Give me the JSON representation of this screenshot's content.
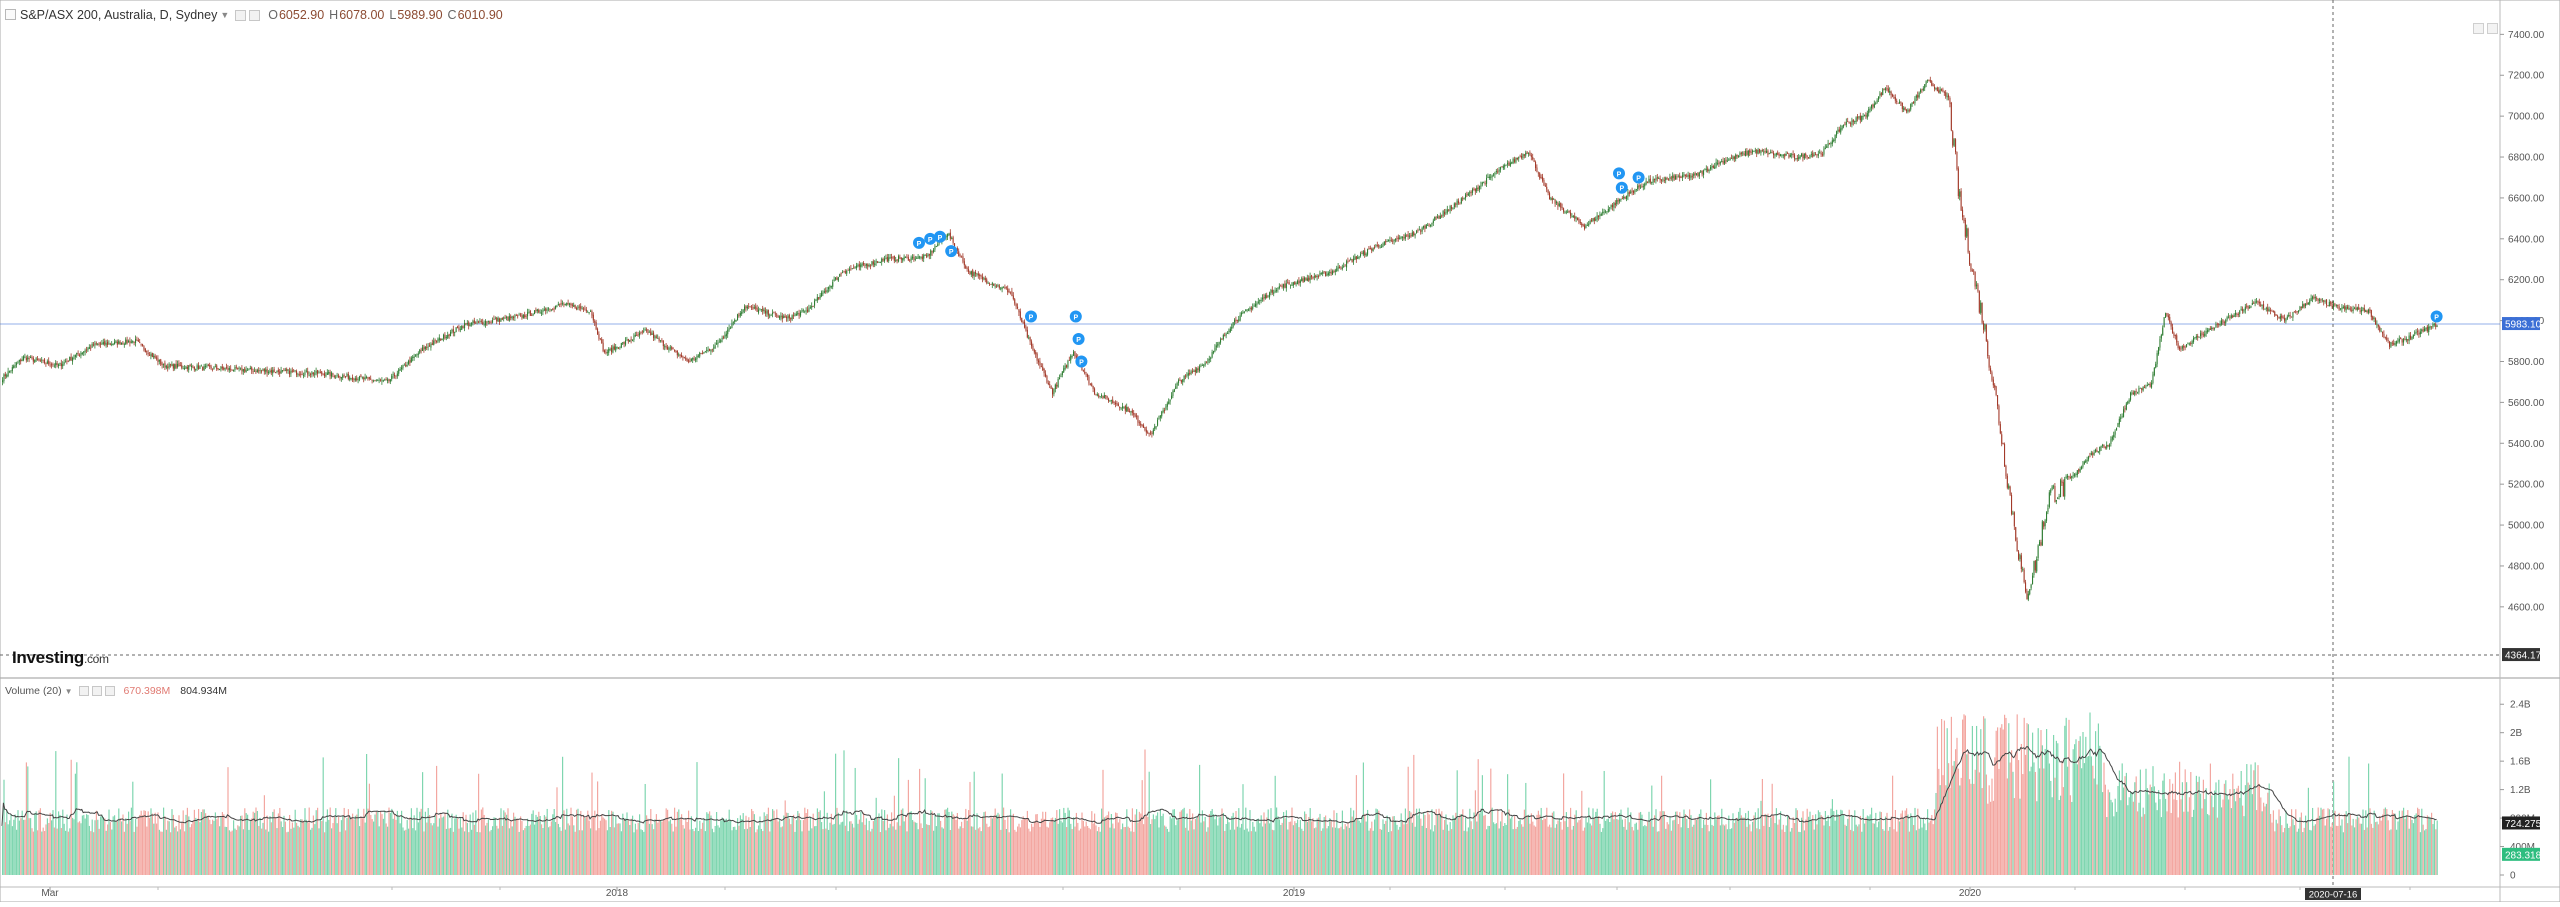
{
  "header": {
    "symbol": "S&P/ASX 200, Australia, D, Sydney",
    "open_label": "O",
    "open": "6052.90",
    "high_label": "H",
    "high": "6078.00",
    "low_label": "L",
    "low": "5989.90",
    "close_label": "C",
    "close": "6010.90"
  },
  "volume_header": {
    "label": "Volume (20)",
    "volume": "670.398M",
    "ma": "804.934M"
  },
  "logo": {
    "main": "Investing",
    "suffix": ".com"
  },
  "badges": {
    "last_price": "5983.10",
    "cursor_price": "4364.17",
    "vol_ma": "724.275M",
    "vol_last": "283.318M",
    "cursor_date": "2020-07-16"
  },
  "colors": {
    "up": "#2e7d32",
    "down": "#a33a2a",
    "vol_up": "#7fd6b0",
    "vol_down": "#f3a7a1",
    "price_line": "#3b6fd6",
    "badge_blue": "#3b6fd6",
    "marker": "#2196f3"
  },
  "chart_data": [
    {
      "type": "candlestick",
      "title": "S&P/ASX 200, Australia, D, Sydney",
      "ylim": [
        4340,
        7480
      ],
      "y_ticks": [
        7400,
        7200,
        7000,
        6800,
        6600,
        6400,
        6200,
        6000,
        5800,
        5600,
        5400,
        5200,
        5000,
        4800,
        4600
      ],
      "x_ticks": [
        "Mar",
        "2018",
        "2019",
        "2020"
      ],
      "last_price": 5983.1,
      "cursor_price": 4364.17,
      "anchors": [
        [
          0,
          5720
        ],
        [
          15,
          5820
        ],
        [
          40,
          5780
        ],
        [
          65,
          5880
        ],
        [
          95,
          5900
        ],
        [
          115,
          5780
        ],
        [
          170,
          5760
        ],
        [
          230,
          5740
        ],
        [
          275,
          5700
        ],
        [
          300,
          5860
        ],
        [
          330,
          5980
        ],
        [
          370,
          6020
        ],
        [
          400,
          6080
        ],
        [
          420,
          6050
        ],
        [
          430,
          5840
        ],
        [
          460,
          5950
        ],
        [
          475,
          5870
        ],
        [
          490,
          5800
        ],
        [
          510,
          5880
        ],
        [
          530,
          6070
        ],
        [
          560,
          6010
        ],
        [
          575,
          6050
        ],
        [
          600,
          6240
        ],
        [
          630,
          6300
        ],
        [
          660,
          6310
        ],
        [
          675,
          6430
        ],
        [
          690,
          6240
        ],
        [
          720,
          6140
        ],
        [
          735,
          5870
        ],
        [
          750,
          5650
        ],
        [
          765,
          5850
        ],
        [
          780,
          5650
        ],
        [
          805,
          5560
        ],
        [
          820,
          5440
        ],
        [
          840,
          5700
        ],
        [
          860,
          5800
        ],
        [
          880,
          6000
        ],
        [
          910,
          6160
        ],
        [
          950,
          6240
        ],
        [
          980,
          6360
        ],
        [
          1010,
          6430
        ],
        [
          1040,
          6580
        ],
        [
          1070,
          6740
        ],
        [
          1090,
          6830
        ],
        [
          1105,
          6600
        ],
        [
          1130,
          6460
        ],
        [
          1155,
          6590
        ],
        [
          1175,
          6680
        ],
        [
          1195,
          6700
        ],
        [
          1210,
          6710
        ],
        [
          1225,
          6770
        ],
        [
          1250,
          6830
        ],
        [
          1280,
          6800
        ],
        [
          1300,
          6820
        ],
        [
          1315,
          6960
        ],
        [
          1330,
          7000
        ],
        [
          1345,
          7140
        ],
        [
          1360,
          7020
        ],
        [
          1375,
          7170
        ],
        [
          1390,
          7090
        ],
        [
          1398,
          6580
        ],
        [
          1408,
          6220
        ],
        [
          1415,
          5990
        ],
        [
          1425,
          5570
        ],
        [
          1435,
          5090
        ],
        [
          1445,
          4650
        ],
        [
          1452,
          4810
        ],
        [
          1462,
          5150
        ],
        [
          1475,
          5190
        ],
        [
          1490,
          5340
        ],
        [
          1505,
          5400
        ],
        [
          1520,
          5640
        ],
        [
          1535,
          5690
        ],
        [
          1545,
          6040
        ],
        [
          1555,
          5860
        ],
        [
          1570,
          5930
        ],
        [
          1590,
          6010
        ],
        [
          1610,
          6090
        ],
        [
          1630,
          6000
        ],
        [
          1650,
          6110
        ],
        [
          1670,
          6060
        ],
        [
          1690,
          6050
        ],
        [
          1705,
          5880
        ],
        [
          1720,
          5920
        ],
        [
          1739,
          5983
        ]
      ],
      "volume": {
        "y_ticks": [
          "2.4B",
          "2B",
          "1.6B",
          "1.2B",
          "800M",
          "400M",
          "0"
        ],
        "ylim": [
          0,
          2.6
        ],
        "ma20_last": 724.275,
        "last": 283.318
      },
      "markers": [
        [
          655,
          6380
        ],
        [
          663,
          6400
        ],
        [
          670,
          6410
        ],
        [
          678,
          6340
        ],
        [
          735,
          6020
        ],
        [
          767,
          6020
        ],
        [
          769,
          5910
        ],
        [
          771,
          5800
        ],
        [
          1155,
          6720
        ],
        [
          1157,
          6650
        ],
        [
          1169,
          6700
        ],
        [
          1739,
          6020
        ]
      ]
    }
  ]
}
